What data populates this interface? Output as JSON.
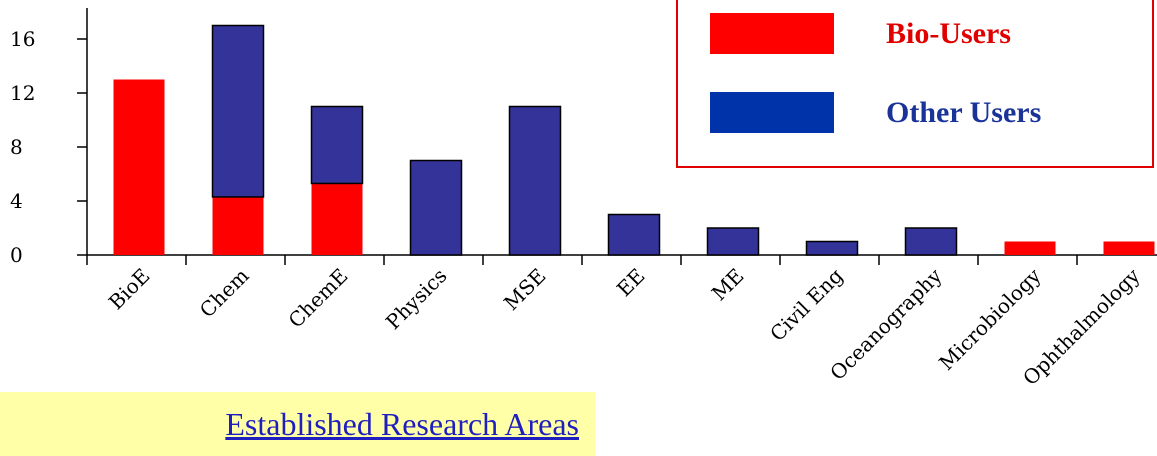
{
  "chart_data": {
    "type": "bar",
    "stacked": true,
    "categories": [
      "BioE",
      "Chem",
      "ChemE",
      "Physics",
      "MSE",
      "EE",
      "ME",
      "Civil Eng",
      "Oceanography",
      "Microbiology",
      "Ophthalmology"
    ],
    "series": [
      {
        "name": "Bio-Users",
        "color": "#ff0000",
        "values": [
          13,
          4.3,
          5.3,
          0,
          0,
          0,
          0,
          0,
          0,
          1,
          1
        ]
      },
      {
        "name": "Other Users",
        "color": "#333399",
        "values": [
          0,
          12.7,
          5.7,
          7,
          11,
          3,
          2,
          1,
          2,
          0,
          0
        ]
      }
    ],
    "yticks": [
      "0",
      "4",
      "8",
      "12",
      "16"
    ],
    "ylim": [
      0,
      18
    ],
    "xlabel": "",
    "ylabel": "",
    "title": "",
    "grid": false,
    "legend_position": "top-right"
  },
  "legend": {
    "bio_label": "Bio-Users",
    "other_label": "Other Users"
  },
  "colors": {
    "bio": "#ff0000",
    "other": "#333399",
    "legend_other": "#0033aa",
    "legend_border": "#e00000",
    "caption_bg": "#ffffa8",
    "link": "#1f1fbf"
  },
  "caption": {
    "link_text": "Established Research Areas"
  }
}
